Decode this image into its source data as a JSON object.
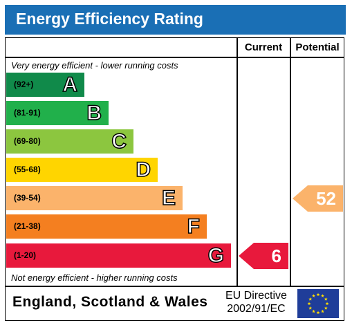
{
  "header": {
    "title": "Energy Efficiency Rating"
  },
  "columns": {
    "current": "Current",
    "potential": "Potential"
  },
  "notes": {
    "top": "Very energy efficient - lower running costs",
    "bottom": "Not energy efficient - higher running costs"
  },
  "chart_data": {
    "type": "bar",
    "title": "Energy Efficiency Rating",
    "bands": [
      {
        "letter": "A",
        "range": "(92+)",
        "color": "#108a4a"
      },
      {
        "letter": "B",
        "range": "(81-91)",
        "color": "#21b04b"
      },
      {
        "letter": "C",
        "range": "(69-80)",
        "color": "#8cc63f"
      },
      {
        "letter": "D",
        "range": "(55-68)",
        "color": "#ffd500"
      },
      {
        "letter": "E",
        "range": "(39-54)",
        "color": "#fbb36b"
      },
      {
        "letter": "F",
        "range": "(21-38)",
        "color": "#f47f20"
      },
      {
        "letter": "G",
        "range": "(1-20)",
        "color": "#e8193c"
      }
    ],
    "current": {
      "value": 6,
      "band": "G",
      "color": "#e8193c"
    },
    "potential": {
      "value": 52,
      "band": "E",
      "color": "#fbb36b"
    }
  },
  "footer": {
    "country": "England, Scotland & Wales",
    "directive_line1": "EU Directive",
    "directive_line2": "2002/91/EC"
  },
  "icons": {
    "flag": "eu-flag-icon"
  }
}
